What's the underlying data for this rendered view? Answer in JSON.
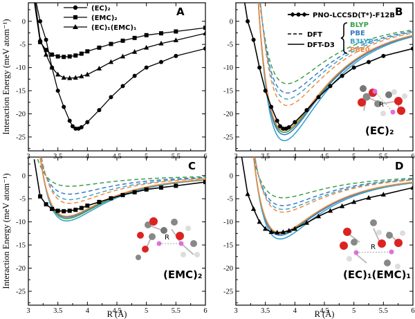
{
  "figure": {
    "ylabel": "Interaction Energy (meV atom⁻¹)",
    "xlabel": "R (Å)"
  },
  "colors": {
    "ref": "#000000",
    "BLYP": "#3aa04a",
    "PBE": "#3a77c4",
    "B3LYP": "#3ba2c8",
    "PBE0": "#ee8a3c"
  },
  "legend_A": [
    {
      "label": "(EC)₂",
      "marker": "circle"
    },
    {
      "label": "(EMC)₂",
      "marker": "square"
    },
    {
      "label": "(EC)₁(EMC)₁",
      "marker": "triangle"
    }
  ],
  "legend_B": {
    "ref_label": "PNO-LCCSD(T*)-F12B",
    "dft_label": "DFT",
    "dftd3_label": "DFT-D3",
    "functionals": [
      "BLYP",
      "PBE",
      "B3LYP",
      "PBE0"
    ]
  },
  "chart_data": [
    {
      "panel": "A",
      "type": "line",
      "xlim": [
        3,
        6
      ],
      "ylim": [
        -28,
        4
      ],
      "xticks": [
        "3",
        "3.5",
        "4",
        "4.5",
        "5",
        "5.5",
        "6"
      ],
      "yticks": [
        "0",
        "-5",
        "-10",
        "-15",
        "-20",
        "-25"
      ],
      "series": [
        {
          "name": "(EC)₂",
          "marker": "circle",
          "x": [
            3.2,
            3.3,
            3.4,
            3.5,
            3.6,
            3.7,
            3.75,
            3.8,
            3.85,
            3.9,
            4.0,
            4.2,
            4.4,
            4.6,
            4.8,
            5.0,
            5.25,
            5.5,
            6.0
          ],
          "y": [
            0.0,
            -4.0,
            -10.0,
            -15.0,
            -18.5,
            -21.5,
            -22.7,
            -23.2,
            -23.2,
            -22.9,
            -21.8,
            -19.2,
            -16.4,
            -14.0,
            -11.8,
            -10.0,
            -8.8,
            -7.5,
            -5.9
          ]
        },
        {
          "name": "(EMC)₂",
          "marker": "square",
          "x": [
            3.2,
            3.3,
            3.4,
            3.5,
            3.6,
            3.7,
            3.8,
            3.9,
            4.0,
            4.2,
            4.4,
            4.6,
            4.8,
            5.0,
            5.25,
            5.5,
            6.0
          ],
          "y": [
            -4.5,
            -6.2,
            -7.2,
            -7.6,
            -7.7,
            -7.6,
            -7.4,
            -7.0,
            -6.5,
            -5.7,
            -4.9,
            -4.2,
            -3.6,
            -3.0,
            -2.6,
            -2.2,
            -1.4
          ]
        },
        {
          "name": "(EC)₁(EMC)₁",
          "marker": "triangle",
          "x": [
            3.2,
            3.3,
            3.4,
            3.5,
            3.6,
            3.7,
            3.8,
            3.9,
            4.0,
            4.2,
            4.4,
            4.6,
            4.8,
            5.0,
            5.25,
            5.5,
            6.0
          ],
          "y": [
            -4.0,
            -7.2,
            -10.0,
            -11.5,
            -12.2,
            -12.3,
            -12.2,
            -11.9,
            -11.5,
            -10.2,
            -8.8,
            -7.6,
            -6.6,
            -5.7,
            -4.8,
            -4.1,
            -2.6
          ]
        }
      ]
    },
    {
      "panel": "B",
      "type": "line",
      "xlim": [
        3,
        6
      ],
      "ylim": [
        -28,
        4
      ],
      "xticks": [
        "3",
        "3.5",
        "4",
        "4.5",
        "5",
        "5.5",
        "6"
      ],
      "yticks": [
        "0",
        "-5",
        "-10",
        "-15",
        "-20",
        "-25"
      ],
      "r0": 3.82,
      "reference": {
        "name": "PNO-LCCSD(T*)-F12B",
        "x": [
          3.2,
          3.3,
          3.4,
          3.5,
          3.6,
          3.7,
          3.75,
          3.8,
          3.85,
          3.9,
          4.0,
          4.2,
          4.4,
          4.6,
          4.8,
          5.0,
          5.25,
          5.5,
          6.0
        ],
        "y": [
          0.0,
          -4.0,
          -10.0,
          -15.0,
          -18.5,
          -21.5,
          -22.7,
          -23.2,
          -23.2,
          -22.9,
          -21.8,
          -19.2,
          -16.4,
          -14.0,
          -11.8,
          -10.0,
          -8.8,
          -7.5,
          -5.9
        ]
      },
      "dft": {
        "BLYP": -13.5,
        "PBE": -15.5,
        "B3LYP": -16.8,
        "PBE0": -18.2
      },
      "dftd3": {
        "BLYP": -24.0,
        "PBE": -24.5,
        "B3LYP": -25.8,
        "PBE0": -23.6
      },
      "annotation": "R"
    },
    {
      "panel": "C",
      "type": "line",
      "xlim": [
        3,
        6
      ],
      "ylim": [
        -28,
        4
      ],
      "xticks": [
        "3",
        "3.5",
        "4",
        "4.5",
        "5",
        "5.5",
        "6"
      ],
      "yticks": [
        "0",
        "-5",
        "-10",
        "-15",
        "-20",
        "-25"
      ],
      "r0": 3.65,
      "reference": {
        "name": "PNO-LCCSD(T*)-F12B",
        "x": [
          3.2,
          3.3,
          3.4,
          3.5,
          3.6,
          3.7,
          3.8,
          3.9,
          4.0,
          4.2,
          4.4,
          4.6,
          4.8,
          5.0,
          5.25,
          5.5,
          6.0
        ],
        "y": [
          -4.5,
          -6.2,
          -7.2,
          -7.6,
          -7.7,
          -7.6,
          -7.4,
          -7.0,
          -6.5,
          -5.7,
          -4.9,
          -4.2,
          -3.6,
          -3.0,
          -2.6,
          -2.2,
          -1.4
        ]
      },
      "dft": {
        "BLYP": -2.3,
        "PBE": -4.0,
        "B3LYP": -5.2,
        "PBE0": -6.0
      },
      "dftd3": {
        "BLYP": -9.3,
        "PBE": -9.0,
        "B3LYP": -9.8,
        "PBE0": -8.8
      },
      "annotation": "R"
    },
    {
      "panel": "D",
      "type": "line",
      "xlim": [
        3,
        6
      ],
      "ylim": [
        -28,
        4
      ],
      "xticks": [
        "3",
        "3.5",
        "4",
        "4.5",
        "5",
        "5.5",
        "6"
      ],
      "yticks": [
        "0",
        "-5",
        "-10",
        "-15",
        "-20",
        "-25"
      ],
      "r0": 3.75,
      "reference": {
        "name": "PNO-LCCSD(T*)-F12B",
        "x": [
          3.2,
          3.3,
          3.4,
          3.5,
          3.6,
          3.7,
          3.8,
          3.9,
          4.0,
          4.2,
          4.4,
          4.6,
          4.8,
          5.0,
          5.25,
          5.5,
          6.0
        ],
        "y": [
          -4.0,
          -7.2,
          -10.0,
          -11.5,
          -12.2,
          -12.3,
          -12.2,
          -11.9,
          -11.5,
          -10.2,
          -8.8,
          -7.6,
          -6.6,
          -5.7,
          -4.8,
          -4.1,
          -2.6
        ]
      },
      "dft": {
        "BLYP": -4.8,
        "PBE": -6.5,
        "B3LYP": -7.3,
        "PBE0": -7.9
      },
      "dftd3": {
        "BLYP": -12.6,
        "PBE": -12.9,
        "B3LYP": -13.7,
        "PBE0": -12.4
      },
      "annotation": "R"
    }
  ]
}
